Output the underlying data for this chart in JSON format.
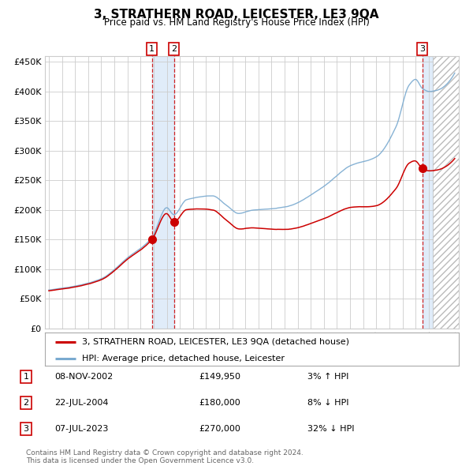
{
  "title": "3, STRATHERN ROAD, LEICESTER, LE3 9QA",
  "subtitle": "Price paid vs. HM Land Registry's House Price Index (HPI)",
  "ylabel_ticks": [
    "£0",
    "£50K",
    "£100K",
    "£150K",
    "£200K",
    "£250K",
    "£300K",
    "£350K",
    "£400K",
    "£450K"
  ],
  "ytick_values": [
    0,
    50000,
    100000,
    150000,
    200000,
    250000,
    300000,
    350000,
    400000,
    450000
  ],
  "x_start_year": 1995,
  "x_end_year": 2026,
  "sale1_date": 2002.86,
  "sale1_price": 149950,
  "sale1_label": "1",
  "sale2_date": 2004.55,
  "sale2_price": 180000,
  "sale2_label": "2",
  "sale3_date": 2023.51,
  "sale3_price": 270000,
  "sale3_label": "3",
  "hpi_line_color": "#7aaad0",
  "price_line_color": "#cc0000",
  "sale_dot_color": "#cc0000",
  "grid_color": "#cccccc",
  "background_color": "#ffffff",
  "shade_color": "#cce0f5",
  "footer_text": "Contains HM Land Registry data © Crown copyright and database right 2024.\nThis data is licensed under the Open Government Licence v3.0.",
  "legend_entries": [
    "3, STRATHERN ROAD, LEICESTER, LE3 9QA (detached house)",
    "HPI: Average price, detached house, Leicester"
  ],
  "table_rows": [
    {
      "num": "1",
      "date": "08-NOV-2002",
      "price": "£149,950",
      "hpi": "3% ↑ HPI"
    },
    {
      "num": "2",
      "date": "22-JUL-2004",
      "price": "£180,000",
      "hpi": "8% ↓ HPI"
    },
    {
      "num": "3",
      "date": "07-JUL-2023",
      "price": "£270,000",
      "hpi": "32% ↓ HPI"
    }
  ]
}
